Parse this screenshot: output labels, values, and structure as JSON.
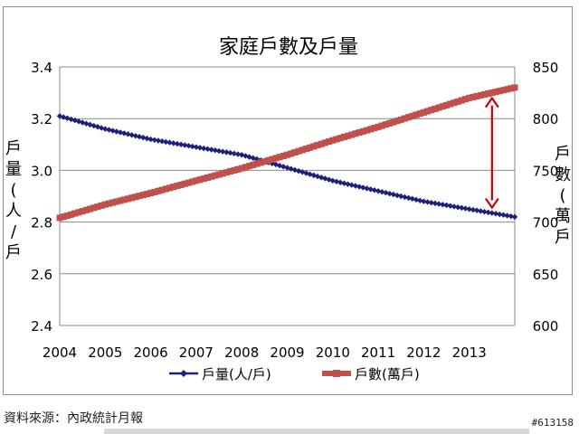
{
  "chart_data": {
    "type": "line",
    "title": "家庭戶數及戶量",
    "x_ticks": [
      "2004",
      "2005",
      "2006",
      "2007",
      "2008",
      "2009",
      "2010",
      "2011",
      "2012",
      "2013"
    ],
    "x_range": [
      2004.0,
      2014.0
    ],
    "y_left": {
      "label_chars": [
        "戶",
        "量",
        "(",
        "人",
        "/",
        "戶"
      ],
      "range": [
        2.4,
        3.4
      ],
      "ticks": [
        "2.4",
        "2.6",
        "2.8",
        "3.0",
        "3.2",
        "3.4"
      ]
    },
    "y_right": {
      "label_chars": [
        "戶",
        "數",
        "(",
        "萬",
        "戶"
      ],
      "range": [
        600,
        850
      ],
      "ticks": [
        "600",
        "650",
        "700",
        "750",
        "800",
        "850"
      ]
    },
    "grid": "horizontal",
    "legend_position": "bottom",
    "series": [
      {
        "name": "戶量(人/戶)",
        "axis": "left",
        "color": "#1f1f7a",
        "marker": "diamond",
        "points": [
          [
            2004.0,
            3.21
          ],
          [
            2005.0,
            3.16
          ],
          [
            2006.0,
            3.12
          ],
          [
            2007.0,
            3.09
          ],
          [
            2008.0,
            3.06
          ],
          [
            2009.0,
            3.01
          ],
          [
            2010.0,
            2.96
          ],
          [
            2011.0,
            2.92
          ],
          [
            2012.0,
            2.88
          ],
          [
            2013.0,
            2.85
          ],
          [
            2014.0,
            2.82
          ]
        ]
      },
      {
        "name": "戶數(萬戶)",
        "axis": "right",
        "color": "#c0504d",
        "marker": "square",
        "points": [
          [
            2004.0,
            704
          ],
          [
            2005.0,
            717
          ],
          [
            2006.0,
            728
          ],
          [
            2007.0,
            740
          ],
          [
            2008.0,
            752
          ],
          [
            2009.0,
            765
          ],
          [
            2010.0,
            779
          ],
          [
            2011.0,
            792
          ],
          [
            2012.0,
            806
          ],
          [
            2013.0,
            820
          ],
          [
            2014.0,
            830
          ]
        ]
      }
    ],
    "annotation": {
      "type": "double-arrow",
      "color": "#cc0000",
      "x": 2013.5
    }
  },
  "source_note": "資料來源：內政統計月報",
  "watermark": "#613158"
}
